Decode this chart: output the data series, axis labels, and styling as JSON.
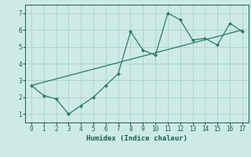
{
  "x": [
    0,
    1,
    2,
    3,
    4,
    5,
    6,
    7,
    8,
    9,
    10,
    11,
    12,
    13,
    14,
    15,
    16,
    17
  ],
  "y_line": [
    2.7,
    2.1,
    1.9,
    1.0,
    1.5,
    2.0,
    2.7,
    3.4,
    5.9,
    4.8,
    4.5,
    7.0,
    6.6,
    5.4,
    5.5,
    5.1,
    6.4,
    5.9
  ],
  "y_trend_x": [
    0,
    17
  ],
  "y_trend_y": [
    2.7,
    6.0
  ],
  "line_color": "#2a7a6a",
  "trend_color": "#2a7a6a",
  "bg_color": "#ceeae6",
  "grid_color": "#aed4ce",
  "xlabel": "Humidex (Indice chaleur)",
  "tick_color": "#1a5c50",
  "xlim": [
    -0.5,
    17.5
  ],
  "ylim": [
    0.5,
    7.5
  ],
  "yticks": [
    1,
    2,
    3,
    4,
    5,
    6,
    7
  ],
  "xticks": [
    0,
    1,
    2,
    3,
    4,
    5,
    6,
    7,
    8,
    9,
    10,
    11,
    12,
    13,
    14,
    15,
    16,
    17
  ]
}
